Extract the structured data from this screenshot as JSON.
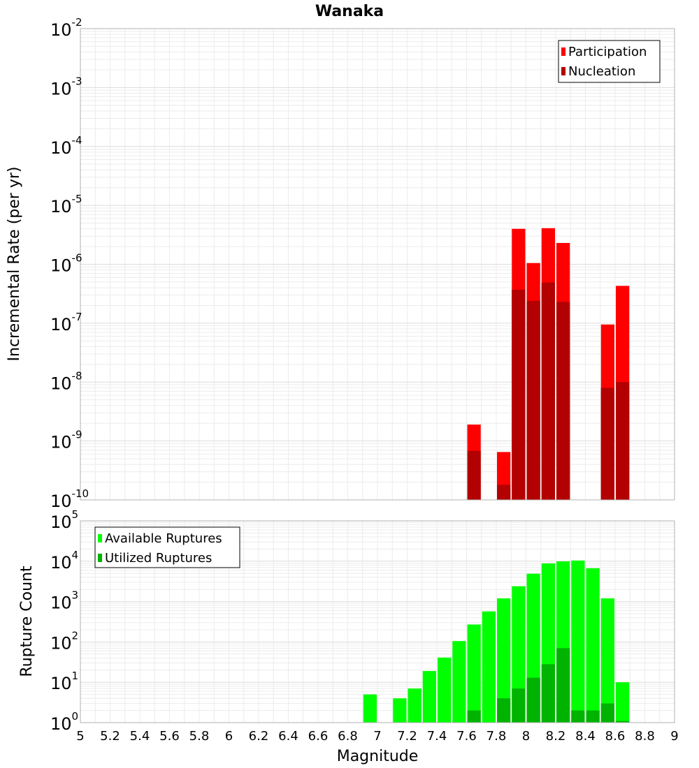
{
  "chart_data": [
    {
      "type": "bar",
      "title": "Wanaka",
      "xlabel": "Magnitude",
      "ylabel": "Incremental Rate (per yr)",
      "yscale": "log",
      "xlim": [
        5,
        9
      ],
      "ylim_exponents": [
        -10,
        -2
      ],
      "bin_width": 0.1,
      "legend_position": "top-right",
      "series": [
        {
          "name": "Participation",
          "color": "#ff0000",
          "x": [
            7.65,
            7.85,
            7.95,
            8.05,
            8.15,
            8.25,
            8.55,
            8.65
          ],
          "values": [
            1.9e-09,
            6.5e-10,
            4e-06,
            1.05e-06,
            4.1e-06,
            2.3e-06,
            9.5e-08,
            4.3e-07
          ]
        },
        {
          "name": "Nucleation",
          "color": "#b30000",
          "x": [
            7.65,
            7.85,
            7.95,
            8.05,
            8.15,
            8.25,
            8.55,
            8.65
          ],
          "values": [
            6.8e-10,
            1.8e-10,
            3.7e-07,
            2.4e-07,
            4.9e-07,
            2.3e-07,
            8e-09,
            1e-08
          ]
        }
      ]
    },
    {
      "type": "bar",
      "title": "",
      "xlabel": "Magnitude",
      "ylabel": "Rupture Count",
      "yscale": "log",
      "xlim": [
        5,
        9
      ],
      "ylim_exponents": [
        0,
        5
      ],
      "bin_width": 0.1,
      "legend_position": "top-left",
      "series": [
        {
          "name": "Available Ruptures",
          "color": "#00ff00",
          "x": [
            6.95,
            7.15,
            7.25,
            7.35,
            7.45,
            7.55,
            7.65,
            7.75,
            7.85,
            7.95,
            8.05,
            8.15,
            8.25,
            8.35,
            8.45,
            8.55,
            8.65
          ],
          "values": [
            5,
            4,
            7,
            19,
            41,
            105,
            270,
            570,
            1200,
            2400,
            4900,
            8800,
            9900,
            10400,
            6700,
            1200,
            10
          ]
        },
        {
          "name": "Utilized Ruptures",
          "color": "#00b300",
          "x": [
            7.65,
            7.85,
            7.95,
            8.05,
            8.15,
            8.25,
            8.35,
            8.45,
            8.55,
            8.65
          ],
          "values": [
            2,
            4,
            7,
            13,
            28,
            70,
            2,
            2,
            3,
            1.1
          ]
        }
      ]
    }
  ],
  "x_ticks": [
    "5",
    "5.2",
    "5.4",
    "5.6",
    "5.8",
    "6",
    "6.2",
    "6.4",
    "6.6",
    "6.8",
    "7",
    "7.2",
    "7.4",
    "7.6",
    "7.8",
    "8",
    "8.2",
    "8.4",
    "8.6",
    "8.8",
    "9"
  ]
}
